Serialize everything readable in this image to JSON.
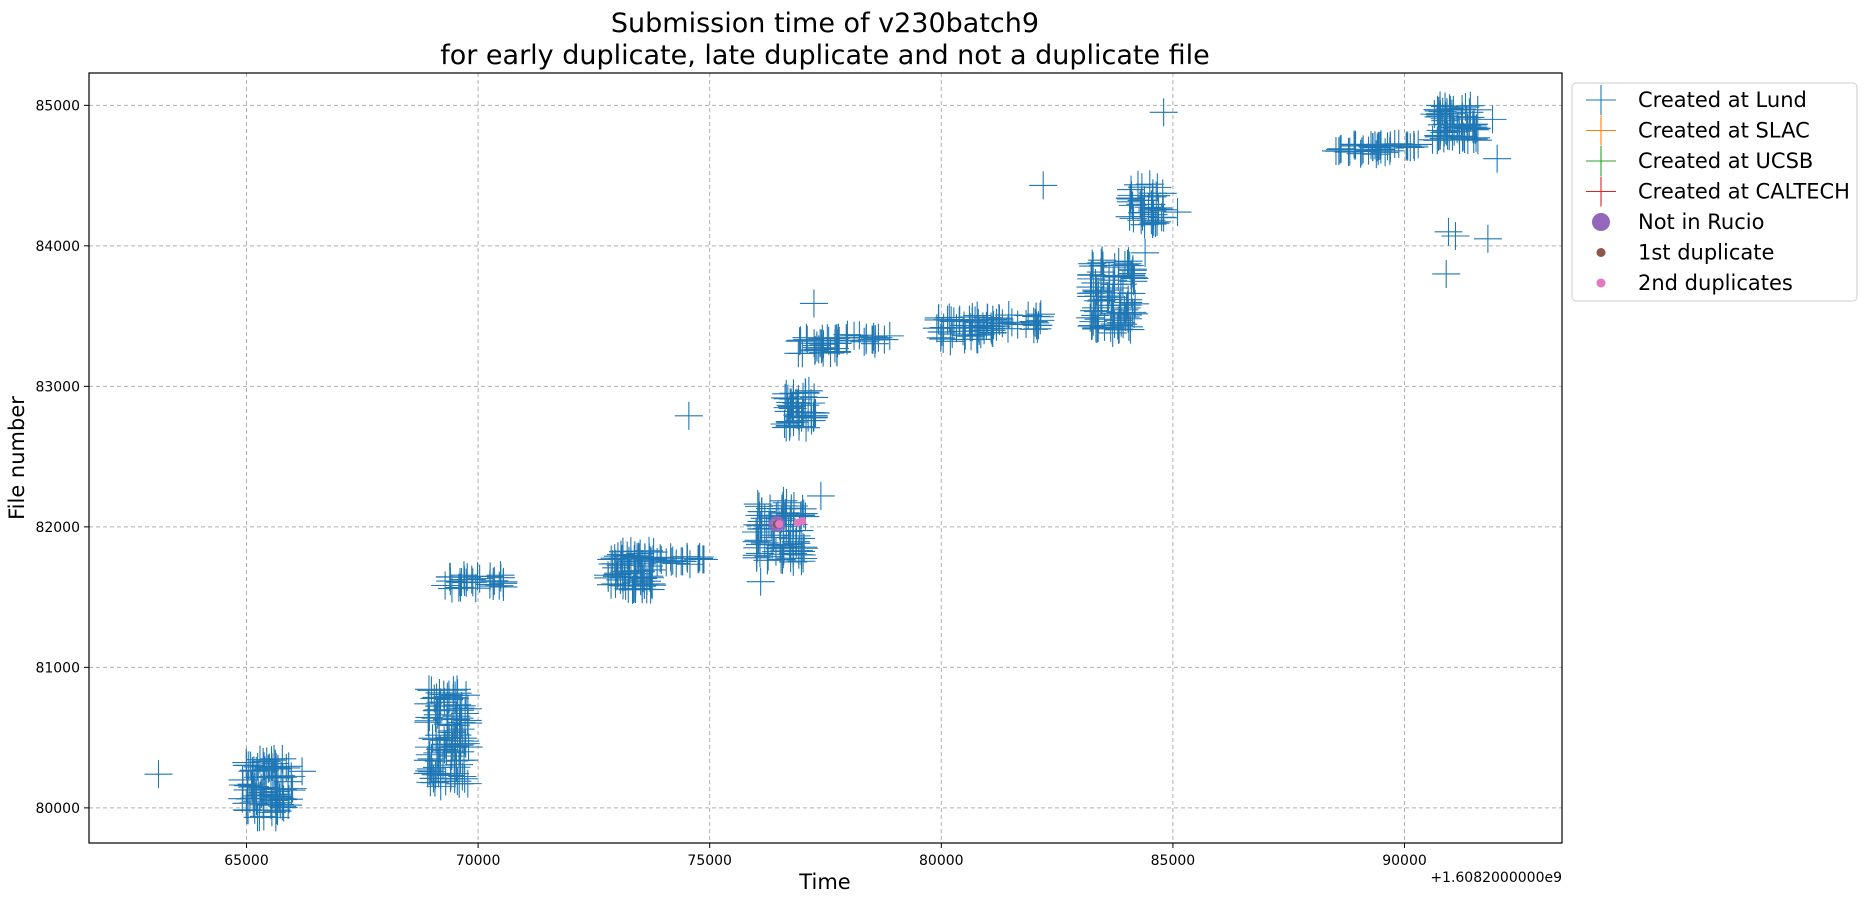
{
  "chart_data": {
    "type": "scatter",
    "title_line1": "Submission time of v230batch9",
    "title_line2": "for early duplicate, late duplicate and not a duplicate file",
    "xlabel": "Time",
    "ylabel": "File number",
    "x_offset_label": "+1.6082000000e9",
    "xlim": [
      61600,
      93400
    ],
    "ylim": [
      79750,
      85230
    ],
    "x_ticks": [
      65000,
      70000,
      75000,
      80000,
      85000,
      90000
    ],
    "y_ticks": [
      80000,
      81000,
      82000,
      83000,
      84000,
      85000
    ],
    "grid": true,
    "legend_placement": "outside-upper-right",
    "legend": [
      {
        "label": "Created at Lund",
        "marker": "plus-large",
        "color": "#1f77b4"
      },
      {
        "label": "Created at SLAC",
        "marker": "plus-large",
        "color": "#ff7f0e"
      },
      {
        "label": "Created at UCSB",
        "marker": "plus-large",
        "color": "#2ca02c"
      },
      {
        "label": "Created at CALTECH",
        "marker": "plus-large",
        "color": "#d62728"
      },
      {
        "label": "Not in Rucio",
        "marker": "circle-large",
        "color": "#9467bd"
      },
      {
        "label": "1st duplicate",
        "marker": "circle-small",
        "color": "#8c564b"
      },
      {
        "label": "2nd duplicates",
        "marker": "circle-small",
        "color": "#e377c2"
      }
    ],
    "series": [
      {
        "name": "Created at Lund",
        "color": "#1f77b4",
        "clusters": [
          {
            "x": [
              64900,
              66000
            ],
            "y": [
              79930,
              80350
            ],
            "n": 90
          },
          {
            "x": [
              68900,
              69800
            ],
            "y": [
              80150,
              80850
            ],
            "n": 110
          },
          {
            "x": [
              69200,
              70600
            ],
            "y": [
              81560,
              81660
            ],
            "n": 30
          },
          {
            "x": [
              72800,
              73800
            ],
            "y": [
              81550,
              81830
            ],
            "n": 70
          },
          {
            "x": [
              73600,
              74900
            ],
            "y": [
              81730,
              81790
            ],
            "n": 20
          },
          {
            "x": [
              76000,
              77100
            ],
            "y": [
              81750,
              82200
            ],
            "n": 80
          },
          {
            "x": [
              76600,
              77300
            ],
            "y": [
              82700,
              82980
            ],
            "n": 45
          },
          {
            "x": [
              76900,
              77800
            ],
            "y": [
              83230,
              83350
            ],
            "n": 30
          },
          {
            "x": [
              77700,
              79000
            ],
            "y": [
              83300,
              83370
            ],
            "n": 20
          },
          {
            "x": [
              79900,
              81200
            ],
            "y": [
              83320,
              83500
            ],
            "n": 40
          },
          {
            "x": [
              80500,
              82200
            ],
            "y": [
              83400,
              83520
            ],
            "n": 30
          },
          {
            "x": [
              83200,
              84200
            ],
            "y": [
              83400,
              83900
            ],
            "n": 90
          },
          {
            "x": [
              84000,
              84800
            ],
            "y": [
              84150,
              84450
            ],
            "n": 40
          },
          {
            "x": [
              88500,
              89700
            ],
            "y": [
              84650,
              84730
            ],
            "n": 30
          },
          {
            "x": [
              89500,
              90500
            ],
            "y": [
              84690,
              84730
            ],
            "n": 10
          },
          {
            "x": [
              90600,
              91600
            ],
            "y": [
              84750,
              85000
            ],
            "n": 70
          }
        ],
        "points": [
          [
            63100,
            80240
          ],
          [
            65900,
            80020
          ],
          [
            66200,
            80260
          ],
          [
            74550,
            82790
          ],
          [
            76100,
            81610
          ],
          [
            77250,
            83590
          ],
          [
            77400,
            82220
          ],
          [
            82200,
            84430
          ],
          [
            83700,
            83380
          ],
          [
            84400,
            83950
          ],
          [
            84800,
            84950
          ],
          [
            85100,
            84240
          ],
          [
            90900,
            83800
          ],
          [
            90950,
            84100
          ],
          [
            91100,
            84070
          ],
          [
            91800,
            84050
          ],
          [
            92000,
            84620
          ],
          [
            91900,
            84900
          ],
          [
            91400,
            84950
          ]
        ]
      },
      {
        "name": "Not in Rucio",
        "color": "#9467bd",
        "points": [
          [
            76450,
            82020
          ]
        ]
      },
      {
        "name": "1st duplicate",
        "color": "#8c564b",
        "points": [
          [
            76450,
            82020
          ]
        ]
      },
      {
        "name": "2nd duplicates",
        "color": "#e377c2",
        "points": [
          [
            76500,
            82020
          ],
          [
            76900,
            82030
          ],
          [
            77000,
            82040
          ]
        ]
      }
    ]
  }
}
